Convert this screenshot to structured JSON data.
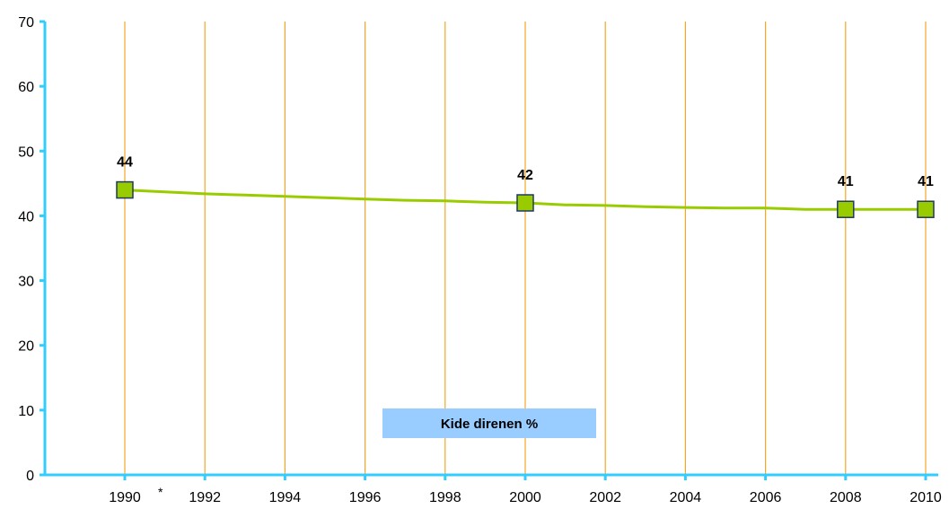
{
  "chart_data": {
    "type": "line",
    "x": [
      1990,
      1991,
      1992,
      1993,
      1994,
      1995,
      1996,
      1997,
      1998,
      1999,
      2000,
      2001,
      2002,
      2003,
      2004,
      2005,
      2006,
      2007,
      2008,
      2009,
      2010
    ],
    "series": [
      {
        "name": "Kide direnen %",
        "values": [
          44,
          43.7,
          43.4,
          43.2,
          43.0,
          42.8,
          42.6,
          42.4,
          42.3,
          42.1,
          42,
          41.7,
          41.6,
          41.4,
          41.3,
          41.2,
          41.2,
          41.0,
          41,
          41,
          41
        ],
        "markers": [
          1990,
          2000,
          2008,
          2010
        ],
        "data_labels": [
          "44",
          "42",
          "41",
          "41"
        ]
      }
    ],
    "x_ticks": [
      "1990",
      "1992",
      "1994",
      "1996",
      "1998",
      "2000",
      "2002",
      "2004",
      "2006",
      "2008",
      "2010"
    ],
    "y_ticks": [
      "0",
      "10",
      "20",
      "30",
      "40",
      "50",
      "60",
      "70"
    ],
    "ylim": [
      0,
      70
    ],
    "xlabel": "",
    "ylabel": "",
    "title": "",
    "grid": "vertical",
    "legend_placement": "bottom-center",
    "annotation": "*",
    "colors": {
      "line": "#99cc00",
      "marker_fill": "#99cc00",
      "marker_stroke": "#1f3864",
      "gridline": "#f5a623",
      "axis": "#33ccff",
      "legend_bg": "#99ccff"
    }
  }
}
